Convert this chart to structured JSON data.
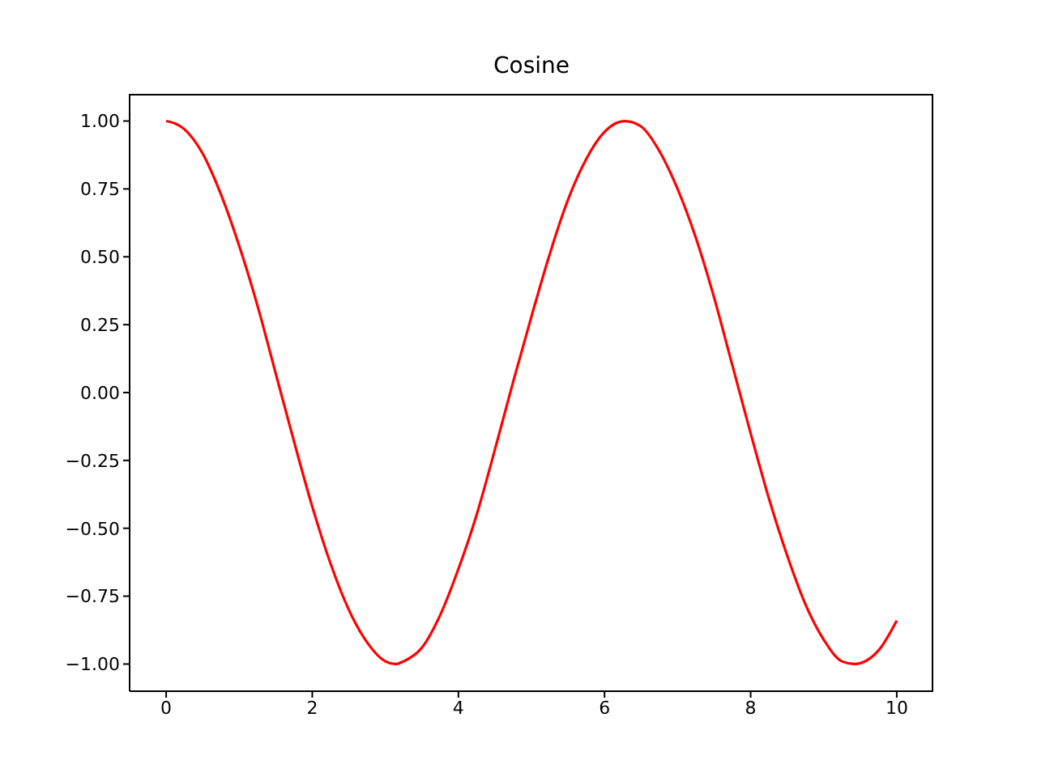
{
  "chart_data": {
    "type": "line",
    "title": "Cosine",
    "x": [
      0,
      0.25,
      0.5,
      0.75,
      1,
      1.25,
      1.5,
      1.75,
      2,
      2.25,
      2.5,
      2.75,
      3,
      3.14,
      3.25,
      3.5,
      3.75,
      4,
      4.25,
      4.5,
      4.75,
      5,
      5.25,
      5.5,
      5.75,
      6,
      6.28,
      6.5,
      6.75,
      7,
      7.25,
      7.5,
      7.75,
      8,
      8.25,
      8.5,
      8.75,
      9,
      9.25,
      9.42,
      9.75,
      10
    ],
    "series": [
      {
        "color": "#ff0000",
        "values": [
          1.0,
          0.97,
          0.88,
          0.73,
          0.54,
          0.32,
          0.07,
          -0.18,
          -0.42,
          -0.63,
          -0.8,
          -0.92,
          -0.99,
          -1.0,
          -0.99,
          -0.94,
          -0.82,
          -0.65,
          -0.45,
          -0.21,
          0.04,
          0.28,
          0.51,
          0.71,
          0.86,
          0.96,
          1.0,
          0.98,
          0.89,
          0.75,
          0.57,
          0.35,
          0.1,
          -0.15,
          -0.39,
          -0.6,
          -0.78,
          -0.91,
          -0.99,
          -1.0,
          -0.95,
          -0.84
        ]
      }
    ],
    "xlim": [
      -0.5,
      10.5
    ],
    "xticks": [
      0,
      2,
      4,
      6,
      8,
      10
    ],
    "ylim": [
      -1.1,
      1.1
    ],
    "yticks": [
      {
        "value": -1,
        "label": "−1.00"
      },
      {
        "value": -0.75,
        "label": "−0.75"
      },
      {
        "value": -0.5,
        "label": "−0.50"
      },
      {
        "value": -0.25,
        "label": "−0.25"
      },
      {
        "value": 0,
        "label": "0.00"
      },
      {
        "value": 0.25,
        "label": "0.25"
      },
      {
        "value": 0.5,
        "label": "0.50"
      },
      {
        "value": 0.75,
        "label": "0.75"
      },
      {
        "value": 1,
        "label": "1.00"
      }
    ],
    "marker": "none",
    "line_style": "solid",
    "grid": false
  }
}
